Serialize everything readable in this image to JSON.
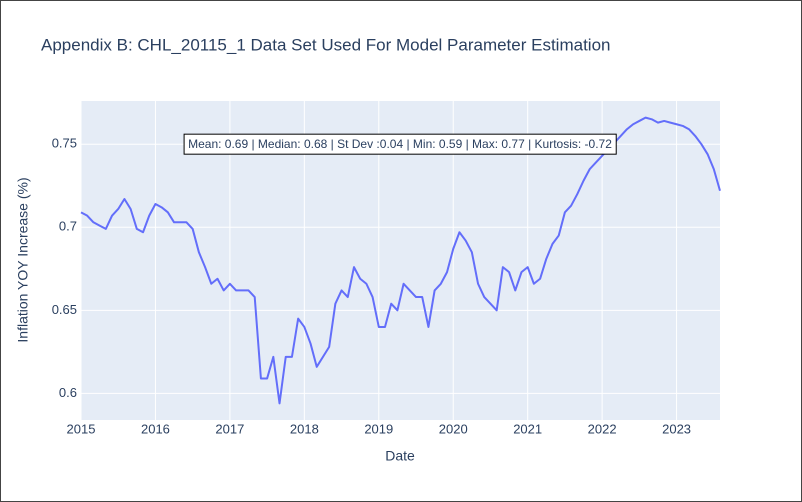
{
  "chart_data": {
    "type": "line",
    "title": "Appendix B: CHL_20115_1 Data Set Used For Model Parameter Estimation",
    "xlabel": "Date",
    "ylabel": "Inflation YOY Increase (%)",
    "annotation": "Mean: 0.69 | Median: 0.68 | St Dev :0.04 | Min: 0.59 | Max: 0.77 | Kurtosis: -0.72",
    "x": [
      "2015-01",
      "2015-02",
      "2015-03",
      "2015-04",
      "2015-05",
      "2015-06",
      "2015-07",
      "2015-08",
      "2015-09",
      "2015-10",
      "2015-11",
      "2015-12",
      "2016-01",
      "2016-02",
      "2016-03",
      "2016-04",
      "2016-05",
      "2016-06",
      "2016-07",
      "2016-08",
      "2016-09",
      "2016-10",
      "2016-11",
      "2016-12",
      "2017-01",
      "2017-02",
      "2017-03",
      "2017-04",
      "2017-05",
      "2017-06",
      "2017-07",
      "2017-08",
      "2017-09",
      "2017-10",
      "2017-11",
      "2017-12",
      "2018-01",
      "2018-02",
      "2018-03",
      "2018-04",
      "2018-05",
      "2018-06",
      "2018-07",
      "2018-08",
      "2018-09",
      "2018-10",
      "2018-11",
      "2018-12",
      "2019-01",
      "2019-02",
      "2019-03",
      "2019-04",
      "2019-05",
      "2019-06",
      "2019-07",
      "2019-08",
      "2019-09",
      "2019-10",
      "2019-11",
      "2019-12",
      "2020-01",
      "2020-02",
      "2020-03",
      "2020-04",
      "2020-05",
      "2020-06",
      "2020-07",
      "2020-08",
      "2020-09",
      "2020-10",
      "2020-11",
      "2020-12",
      "2021-01",
      "2021-02",
      "2021-03",
      "2021-04",
      "2021-05",
      "2021-06",
      "2021-07",
      "2021-08",
      "2021-09",
      "2021-10",
      "2021-11",
      "2021-12",
      "2022-01",
      "2022-02",
      "2022-03",
      "2022-04",
      "2022-05",
      "2022-06",
      "2022-07",
      "2022-08",
      "2022-09",
      "2022-10",
      "2022-11",
      "2022-12",
      "2023-01",
      "2023-02",
      "2023-03",
      "2023-04",
      "2023-05",
      "2023-06",
      "2023-07",
      "2023-08"
    ],
    "series": [
      {
        "color": "#636efa",
        "values": [
          0.709,
          0.707,
          0.703,
          0.701,
          0.699,
          0.707,
          0.711,
          0.717,
          0.711,
          0.699,
          0.697,
          0.707,
          0.714,
          0.712,
          0.709,
          0.703,
          0.703,
          0.703,
          0.699,
          0.685,
          0.676,
          0.666,
          0.669,
          0.662,
          0.666,
          0.662,
          0.662,
          0.662,
          0.658,
          0.609,
          0.609,
          0.622,
          0.594,
          0.622,
          0.622,
          0.645,
          0.64,
          0.63,
          0.616,
          0.622,
          0.628,
          0.654,
          0.662,
          0.658,
          0.676,
          0.669,
          0.666,
          0.658,
          0.64,
          0.64,
          0.654,
          0.65,
          0.666,
          0.662,
          0.658,
          0.658,
          0.64,
          0.662,
          0.666,
          0.673,
          0.687,
          0.697,
          0.692,
          0.685,
          0.666,
          0.658,
          0.654,
          0.65,
          0.676,
          0.673,
          0.662,
          0.673,
          0.676,
          0.666,
          0.669,
          0.681,
          0.69,
          0.695,
          0.709,
          0.713,
          0.72,
          0.728,
          0.735,
          0.739,
          0.743,
          0.747,
          0.751,
          0.755,
          0.759,
          0.762,
          0.764,
          0.766,
          0.765,
          0.763,
          0.764,
          0.763,
          0.762,
          0.761,
          0.759,
          0.755,
          0.75,
          0.744,
          0.735,
          0.722
        ]
      }
    ],
    "xlim": [
      "2015-01",
      "2023-08"
    ],
    "xticks": [
      {
        "value": "2015-01",
        "label": "2015"
      },
      {
        "value": "2016-01",
        "label": "2016"
      },
      {
        "value": "2017-01",
        "label": "2017"
      },
      {
        "value": "2018-01",
        "label": "2018"
      },
      {
        "value": "2019-01",
        "label": "2019"
      },
      {
        "value": "2020-01",
        "label": "2020"
      },
      {
        "value": "2021-01",
        "label": "2021"
      },
      {
        "value": "2022-01",
        "label": "2022"
      },
      {
        "value": "2023-01",
        "label": "2023"
      }
    ],
    "ylim": [
      0.584,
      0.776
    ],
    "yticks": [
      0.6,
      0.65,
      0.7,
      0.75
    ],
    "grid": true
  }
}
